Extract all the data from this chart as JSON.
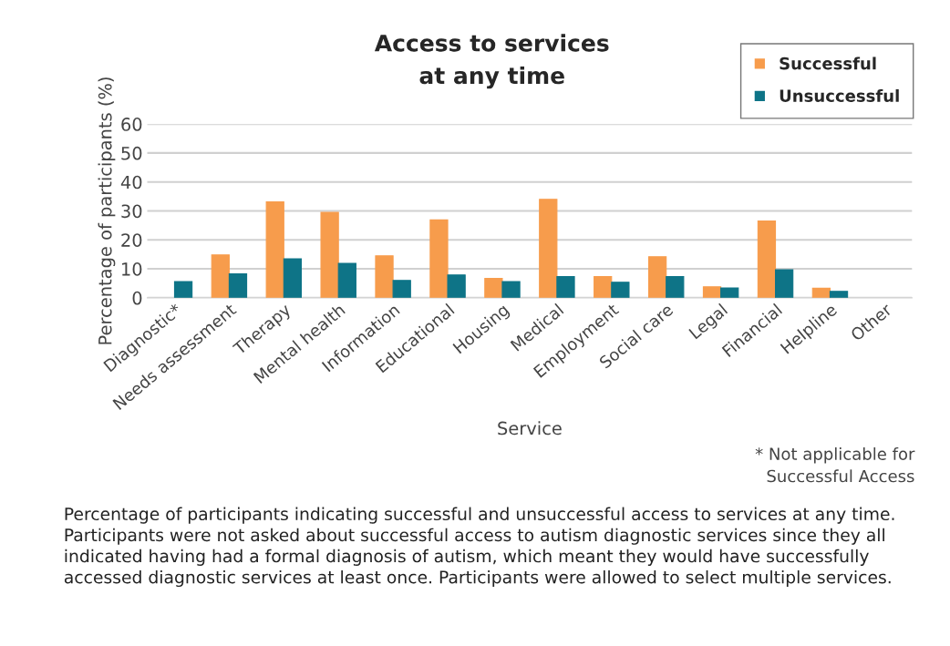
{
  "chart_data": {
    "type": "bar",
    "title": "Access to services\nat any time",
    "xlabel": "Service",
    "ylabel": "Percentage of participants (%)",
    "categories": [
      "Diagnostic*",
      "Needs assessment",
      "Therapy",
      "Mental health",
      "Information",
      "Educational",
      "Housing",
      "Medical",
      "Employment",
      "Social care",
      "Legal",
      "Financial",
      "Helpline",
      "Other"
    ],
    "series": [
      {
        "name": "Successful",
        "color": "#f79c4c",
        "values": [
          null,
          14.8,
          33.1,
          29.5,
          14.5,
          26.9,
          6.7,
          34.0,
          7.3,
          14.2,
          3.8,
          26.5,
          3.3,
          null
        ]
      },
      {
        "name": "Unsuccessful",
        "color": "#0e7487",
        "values": [
          5.6,
          8.3,
          13.5,
          11.9,
          6.0,
          7.9,
          5.6,
          7.3,
          5.4,
          7.3,
          3.4,
          9.7,
          2.2,
          null
        ]
      }
    ],
    "ylim": [
      0,
      60
    ],
    "yticks": [
      0,
      10,
      20,
      30,
      40,
      50,
      60
    ],
    "grid": "y",
    "legend": "top right",
    "annotations": [
      "* Not applicable for\nSuccessful Access",
      "Percentage of participants indicating successful and unsuccessful access to services at any time. Participants were not asked about successful access to autism diagnostic services since they all indicated having had a formal diagnosis of autism, which meant they would have successfully accessed diagnostic services at least once. Participants were allowed to select multiple services."
    ]
  }
}
